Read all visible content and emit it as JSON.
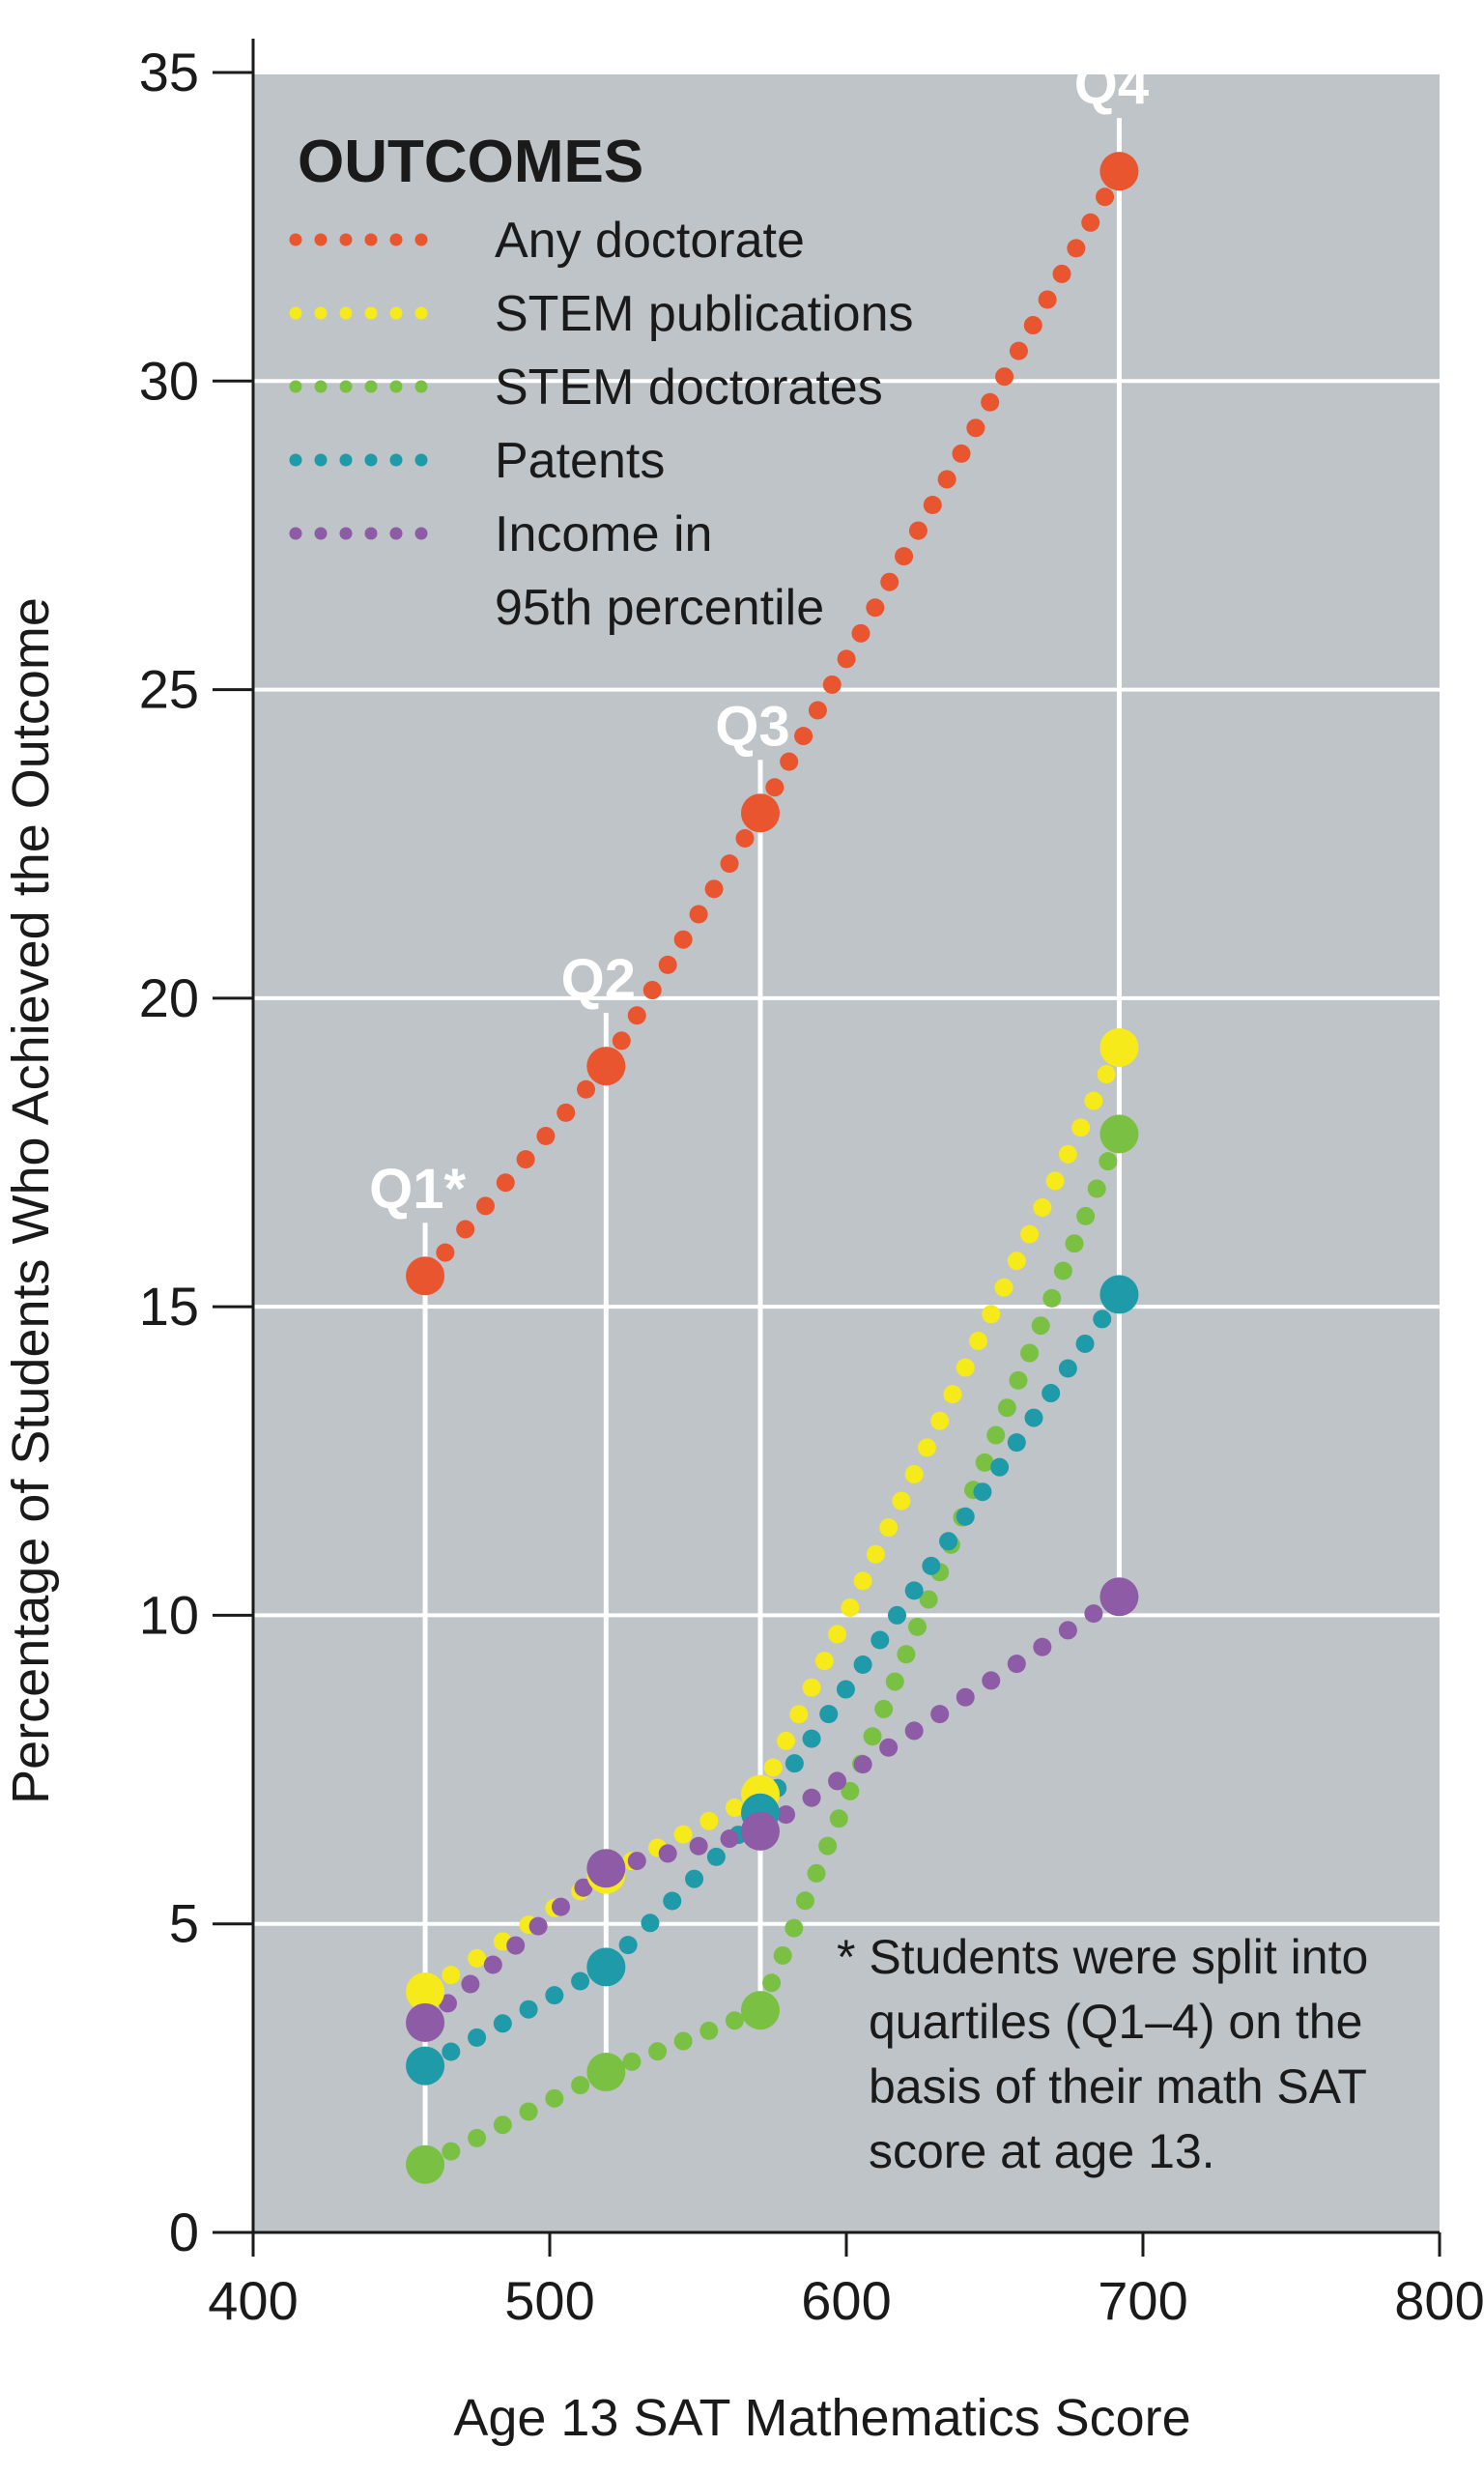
{
  "chart_data": {
    "type": "scatter",
    "title": "",
    "xlabel": "Age 13 SAT Mathematics Score",
    "ylabel": "Percentage of Students Who Achieved the Outcome",
    "xlim": [
      400,
      800
    ],
    "ylim": [
      0,
      35
    ],
    "x_ticks": [
      400,
      500,
      600,
      700,
      800
    ],
    "y_ticks": [
      0,
      5,
      10,
      15,
      20,
      25,
      30,
      35
    ],
    "grid": "horizontal",
    "background": "#bec4c8",
    "legend": {
      "title": "OUTCOMES",
      "placement": "top-left"
    },
    "quartile_labels": [
      "Q1*",
      "Q2",
      "Q3",
      "Q4"
    ],
    "x": [
      458,
      519,
      571,
      692
    ],
    "series": [
      {
        "name": "Any doctorate",
        "color": "#e8552f",
        "values": [
          15.5,
          18.9,
          23.0,
          33.4
        ]
      },
      {
        "name": "STEM publications",
        "color": "#f6ea1a",
        "values": [
          3.9,
          5.8,
          7.1,
          19.2
        ]
      },
      {
        "name": "STEM doctorates",
        "color": "#7ac143",
        "values": [
          1.1,
          2.6,
          3.6,
          17.8
        ]
      },
      {
        "name": "Patents",
        "color": "#1f9aa8",
        "values": [
          2.7,
          4.3,
          6.8,
          15.2
        ]
      },
      {
        "name": "Income in 95th percentile",
        "legend_lines": [
          "Income in",
          "95th percentile"
        ],
        "color": "#8e5ba6",
        "values": [
          3.4,
          5.9,
          6.5,
          10.3
        ]
      }
    ],
    "footnote_lines": [
      "* Students were split into",
      "quartiles (Q1–4) on the",
      "basis of their math SAT",
      "score at age 13."
    ]
  }
}
